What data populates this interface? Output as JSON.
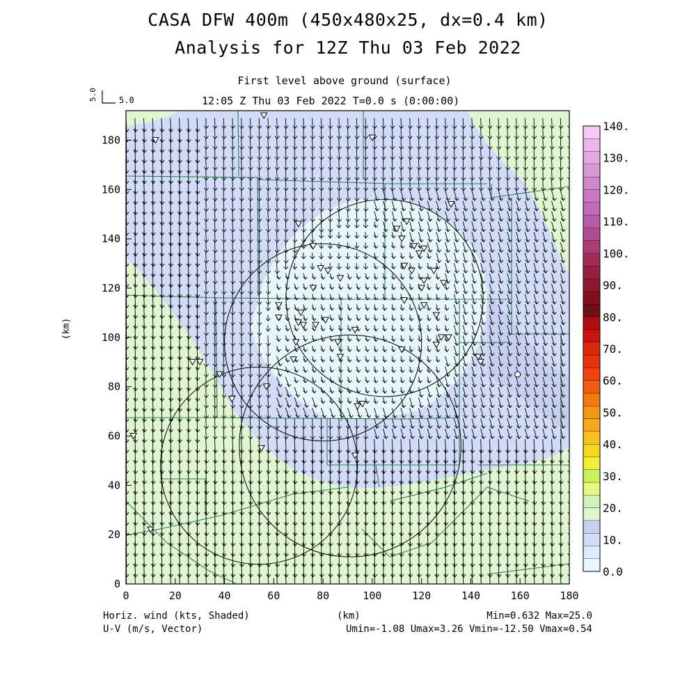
{
  "title_line1": "CASA DFW 400m (450x480x25, dx=0.4 km)",
  "title_line2": "Analysis for 12Z Thu 03 Feb 2022",
  "subtitle": "First level above ground (surface)",
  "time_line": "12:05 Z Thu 03 Feb 2022    T=0.0 s (0:00:00)",
  "ref_vector": {
    "label_vertical": "5.0",
    "label_horizontal": "5.0"
  },
  "x_axis": {
    "label": "(km)",
    "range": [
      0,
      180
    ],
    "ticks": [
      "0",
      "20",
      "40",
      "60",
      "80",
      "100",
      "120",
      "140",
      "160",
      "180"
    ]
  },
  "y_axis": {
    "label": "(km)",
    "range": [
      0,
      192
    ],
    "ticks": [
      "0",
      "20",
      "40",
      "60",
      "80",
      "100",
      "120",
      "140",
      "160",
      "180"
    ]
  },
  "footer": {
    "left1": "Horiz. wind (kts, Shaded)",
    "left2": "U-V (m/s, Vector)",
    "right1": "Min=0.632 Max=25.0",
    "right2": "Umin=-1.08 Umax=3.26 Vmin=-12.50 Vmax=0.54"
  },
  "colorbar": {
    "labels": [
      "0.0",
      "10.",
      "20.",
      "30.",
      "40.",
      "50.",
      "60.",
      "70.",
      "80.",
      "90.",
      "100.",
      "110.",
      "120.",
      "130.",
      "140."
    ],
    "colors": [
      "#e6f6fb",
      "#dcecf8",
      "#d1dcf7",
      "#c8d0f1",
      "#dff6d0",
      "#cff2b6",
      "#e6fa80",
      "#ccf05c",
      "#f2ee3a",
      "#f6d820",
      "#f8c024",
      "#f8a81c",
      "#f59612",
      "#f27810",
      "#ee6010",
      "#f04214",
      "#e8320c",
      "#dc280e",
      "#c8140c",
      "#b00e0e",
      "#700e16",
      "#80101e",
      "#8c1830",
      "#962040",
      "#a02c58",
      "#aa3c76",
      "#b04c90",
      "#b85ea8",
      "#c06cb8",
      "#c878c2",
      "#d088cc",
      "#d898d4",
      "#e2a8e0",
      "#ecb8ec",
      "#f6c8f6"
    ]
  },
  "chart_data": {
    "type": "heatmap",
    "field": "Horiz. wind (kts, Shaded)",
    "vectors": "U-V (m/s, Vector)",
    "xlim": [
      0,
      180
    ],
    "ylim": [
      0,
      192
    ],
    "min": 0.632,
    "max": 25.0,
    "umin": -1.08,
    "umax": 3.26,
    "vmin": -12.5,
    "vmax": 0.54,
    "contour_levels": [
      0,
      10,
      20,
      30
    ],
    "radar_rings_km": [
      {
        "cx": 105,
        "cy": 116,
        "r": 40
      },
      {
        "cx": 80,
        "cy": 98,
        "r": 40
      },
      {
        "cx": 91,
        "cy": 56,
        "r": 45
      },
      {
        "cx": 54,
        "cy": 48,
        "r": 40
      }
    ],
    "station_markers_km": [
      [
        12,
        180
      ],
      [
        56,
        190
      ],
      [
        100,
        181
      ],
      [
        57,
        80
      ],
      [
        30,
        90
      ],
      [
        27,
        90
      ],
      [
        3,
        60
      ],
      [
        38,
        85
      ],
      [
        43,
        75
      ],
      [
        10,
        22
      ],
      [
        93,
        52
      ],
      [
        94,
        72
      ],
      [
        96,
        73
      ],
      [
        55,
        55
      ],
      [
        70,
        146
      ],
      [
        76,
        137
      ],
      [
        79,
        128
      ],
      [
        82,
        127
      ],
      [
        87,
        124
      ],
      [
        76,
        120
      ],
      [
        71,
        110
      ],
      [
        62,
        113
      ],
      [
        62,
        108
      ],
      [
        70,
        106
      ],
      [
        72,
        105
      ],
      [
        77,
        105
      ],
      [
        81,
        107
      ],
      [
        69,
        98
      ],
      [
        86,
        98
      ],
      [
        93,
        103
      ],
      [
        87,
        92
      ],
      [
        68,
        91
      ],
      [
        110,
        144
      ],
      [
        114,
        147
      ],
      [
        112,
        140
      ],
      [
        117,
        137
      ],
      [
        119,
        134
      ],
      [
        121,
        136
      ],
      [
        113,
        129
      ],
      [
        116,
        127
      ],
      [
        125,
        127
      ],
      [
        121,
        123
      ],
      [
        120,
        120
      ],
      [
        129,
        122
      ],
      [
        113,
        115
      ],
      [
        121,
        113
      ],
      [
        126,
        109
      ],
      [
        131,
        100
      ],
      [
        128,
        100
      ],
      [
        126,
        97
      ],
      [
        112,
        95
      ],
      [
        143,
        92
      ],
      [
        144,
        90
      ],
      [
        132,
        154
      ]
    ]
  }
}
